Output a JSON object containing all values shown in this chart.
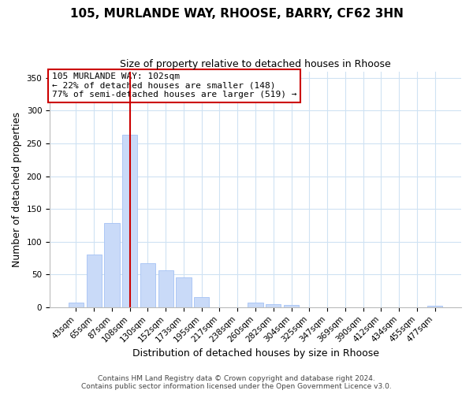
{
  "title": "105, MURLANDE WAY, RHOOSE, BARRY, CF62 3HN",
  "subtitle": "Size of property relative to detached houses in Rhoose",
  "xlabel": "Distribution of detached houses by size in Rhoose",
  "ylabel": "Number of detached properties",
  "categories": [
    "43sqm",
    "65sqm",
    "87sqm",
    "108sqm",
    "130sqm",
    "152sqm",
    "173sqm",
    "195sqm",
    "217sqm",
    "238sqm",
    "260sqm",
    "282sqm",
    "304sqm",
    "325sqm",
    "347sqm",
    "369sqm",
    "390sqm",
    "412sqm",
    "434sqm",
    "455sqm",
    "477sqm"
  ],
  "values": [
    7,
    81,
    128,
    263,
    67,
    56,
    45,
    15,
    0,
    0,
    7,
    5,
    3,
    0,
    0,
    0,
    0,
    0,
    0,
    0,
    2
  ],
  "bar_color": "#c9daf8",
  "bar_edge_color": "#a4c2f4",
  "vline_x_index": 3,
  "vline_color": "#cc0000",
  "ylim": [
    0,
    360
  ],
  "yticks": [
    0,
    50,
    100,
    150,
    200,
    250,
    300,
    350
  ],
  "annotation_title": "105 MURLANDE WAY: 102sqm",
  "annotation_line1": "← 22% of detached houses are smaller (148)",
  "annotation_line2": "77% of semi-detached houses are larger (519) →",
  "annotation_box_color": "#ffffff",
  "annotation_box_edge": "#cc0000",
  "footer1": "Contains HM Land Registry data © Crown copyright and database right 2024.",
  "footer2": "Contains public sector information licensed under the Open Government Licence v3.0.",
  "background_color": "#ffffff",
  "grid_color": "#cfe2f3",
  "title_fontsize": 11,
  "subtitle_fontsize": 9,
  "axis_label_fontsize": 9,
  "tick_fontsize": 7.5,
  "annotation_fontsize": 8,
  "footer_fontsize": 6.5
}
